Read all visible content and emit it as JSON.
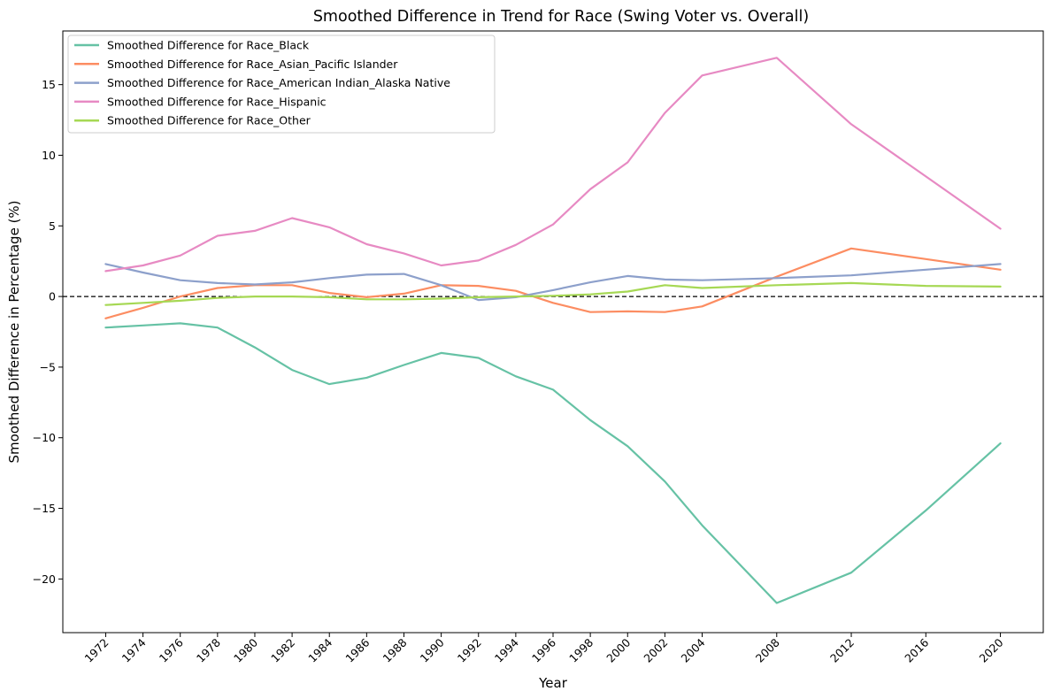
{
  "chart_data": {
    "type": "line",
    "title": "Smoothed Difference in Trend for Race (Swing Voter vs. Overall)",
    "xlabel": "Year",
    "ylabel": "Smoothed Difference in Percentage (%)",
    "x": [
      1972,
      1974,
      1976,
      1978,
      1980,
      1982,
      1984,
      1986,
      1988,
      1990,
      1992,
      1994,
      1996,
      1998,
      2000,
      2002,
      2004,
      2008,
      2012,
      2016,
      2020
    ],
    "xticks": [
      "1972",
      "1974",
      "1976",
      "1978",
      "1980",
      "1982",
      "1984",
      "1986",
      "1988",
      "1990",
      "1992",
      "1994",
      "1996",
      "1998",
      "2000",
      "2002",
      "2004",
      "2008",
      "2012",
      "2016",
      "2020"
    ],
    "xlim": [
      1969.7,
      2022.3
    ],
    "ylim": [
      -23.8,
      18.8
    ],
    "yticks": [
      -20,
      -15,
      -10,
      -5,
      0,
      5,
      10,
      15
    ],
    "ytick_labels": [
      "−20",
      "−15",
      "−10",
      "−5",
      "0",
      "5",
      "10",
      "15"
    ],
    "reference_line": 0,
    "legend_position": "upper-left",
    "series": [
      {
        "name": "Smoothed Difference for Race_Black",
        "color": "#66c2a5",
        "values": [
          -2.2,
          -2.05,
          -1.9,
          -2.2,
          -3.6,
          -5.2,
          -6.2,
          -5.75,
          -4.85,
          -4.0,
          -4.35,
          -5.65,
          -6.6,
          -8.75,
          -10.6,
          -13.1,
          -16.2,
          -21.7,
          -19.55,
          -15.15,
          -10.4
        ]
      },
      {
        "name": "Smoothed Difference for Race_Asian_Pacific Islander",
        "color": "#fc8d62",
        "values": [
          -1.55,
          -0.8,
          0.0,
          0.6,
          0.8,
          0.8,
          0.25,
          -0.05,
          0.2,
          0.8,
          0.75,
          0.4,
          -0.45,
          -1.1,
          -1.05,
          -1.1,
          -0.7,
          1.4,
          3.4,
          2.65,
          1.9
        ]
      },
      {
        "name": "Smoothed Difference for Race_American Indian_Alaska Native",
        "color": "#8da0cb",
        "values": [
          2.3,
          1.7,
          1.15,
          0.95,
          0.85,
          1.0,
          1.3,
          1.55,
          1.6,
          0.8,
          -0.25,
          -0.05,
          0.45,
          1.0,
          1.45,
          1.2,
          1.15,
          1.3,
          1.5,
          1.9,
          2.3
        ]
      },
      {
        "name": "Smoothed Difference for Race_Hispanic",
        "color": "#e78ac3",
        "values": [
          1.8,
          2.2,
          2.9,
          4.3,
          4.65,
          5.55,
          4.9,
          3.7,
          3.05,
          2.2,
          2.55,
          3.65,
          5.1,
          7.6,
          9.5,
          13.0,
          15.65,
          16.9,
          12.2,
          8.5,
          4.8
        ]
      },
      {
        "name": "Smoothed Difference for Race_Other",
        "color": "#a6d854",
        "values": [
          -0.6,
          -0.45,
          -0.3,
          -0.1,
          0.0,
          0.0,
          -0.05,
          -0.2,
          -0.2,
          -0.15,
          -0.05,
          0.0,
          0.05,
          0.15,
          0.35,
          0.8,
          0.6,
          0.8,
          0.95,
          0.75,
          0.7
        ]
      }
    ]
  }
}
